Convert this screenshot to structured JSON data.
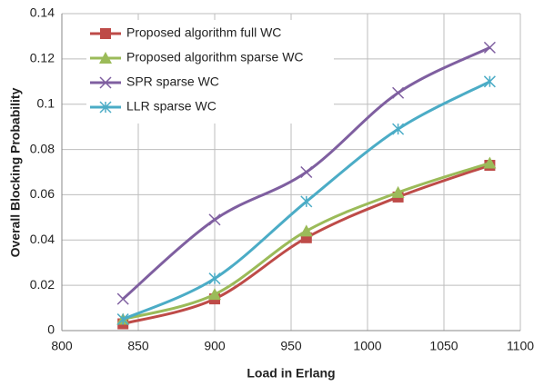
{
  "chart_data": {
    "type": "line",
    "x_label": "Load in Erlang",
    "y_label": "Overall Blocking Probability",
    "x": [
      840,
      900,
      960,
      1020,
      1080
    ],
    "series": [
      {
        "name": "Proposed algorithm full WC",
        "color": "#be4b48",
        "marker": "square",
        "values": [
          0.003,
          0.014,
          0.041,
          0.059,
          0.073
        ]
      },
      {
        "name": "Proposed algorithm sparse WC",
        "color": "#9bbb59",
        "marker": "triangle",
        "values": [
          0.005,
          0.016,
          0.044,
          0.061,
          0.074
        ]
      },
      {
        "name": "SPR sparse WC",
        "color": "#7f5fa0",
        "marker": "x",
        "values": [
          0.014,
          0.049,
          0.07,
          0.105,
          0.125
        ]
      },
      {
        "name": "LLR sparse WC",
        "color": "#4bacc6",
        "marker": "asterisk",
        "values": [
          0.005,
          0.023,
          0.057,
          0.089,
          0.11
        ]
      }
    ],
    "xlim": [
      800,
      1100
    ],
    "xticks": [
      800,
      850,
      900,
      950,
      1000,
      1050,
      1100
    ],
    "ylim": [
      0,
      0.14
    ],
    "yticks": [
      0,
      0.02,
      0.04,
      0.06,
      0.08,
      0.1,
      0.12,
      0.14
    ],
    "grid": true,
    "legend": "upper left"
  }
}
